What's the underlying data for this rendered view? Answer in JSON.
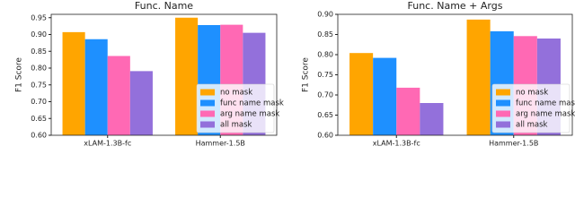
{
  "chart_data": [
    {
      "type": "bar",
      "title": "Func. Name",
      "ylabel": "F1 Score",
      "categories": [
        "xLAM-1.3B-fc",
        "Hammer-1.5B"
      ],
      "series": [
        {
          "name": "no mask",
          "color": "#ffa500",
          "values": [
            0.907,
            0.95
          ]
        },
        {
          "name": "func name mask",
          "color": "#1e90ff",
          "values": [
            0.886,
            0.928
          ]
        },
        {
          "name": "arg name mask",
          "color": "#ff69b4",
          "values": [
            0.836,
            0.929
          ]
        },
        {
          "name": "all mask",
          "color": "#9370db",
          "values": [
            0.791,
            0.905
          ]
        }
      ],
      "ylim": [
        0.6,
        0.96
      ],
      "yticks": [
        {
          "value": 0.6,
          "label": "0.60"
        },
        0.65,
        {
          "value": 0.7,
          "label": "0.70"
        },
        0.75,
        {
          "value": 0.8,
          "label": "0.80"
        },
        0.85,
        {
          "value": 0.9,
          "label": "0.90"
        },
        0.95
      ],
      "legend": "lower right"
    },
    {
      "type": "bar",
      "title": "Func. Name + Args",
      "ylabel": "F1 Score",
      "categories": [
        "xLAM-1.3B-fc",
        "Hammer-1.5B"
      ],
      "series": [
        {
          "name": "no mask",
          "color": "#ffa500",
          "values": [
            0.804,
            0.887
          ]
        },
        {
          "name": "func name mask",
          "color": "#1e90ff",
          "values": [
            0.792,
            0.858
          ]
        },
        {
          "name": "arg name mask",
          "color": "#ff69b4",
          "values": [
            0.718,
            0.846
          ]
        },
        {
          "name": "all mask",
          "color": "#9370db",
          "values": [
            0.68,
            0.84
          ]
        }
      ],
      "ylim": [
        0.6,
        0.9
      ],
      "yticks": [
        {
          "value": 0.6,
          "label": "0.60"
        },
        0.65,
        {
          "value": 0.7,
          "label": "0.70"
        },
        0.75,
        {
          "value": 0.8,
          "label": "0.80"
        },
        0.85,
        {
          "value": 0.9,
          "label": "0.90"
        }
      ],
      "legend": "lower right"
    }
  ]
}
